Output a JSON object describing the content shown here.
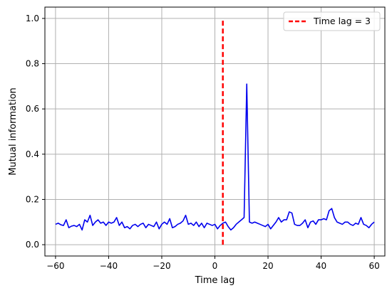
{
  "chart_data": {
    "type": "line",
    "title": "",
    "xlabel": "Time lag",
    "ylabel": "Mutual information",
    "xlim": [
      -64,
      64
    ],
    "ylim": [
      -0.05,
      1.05
    ],
    "xticks": [
      -60,
      -40,
      -20,
      0,
      20,
      40,
      60
    ],
    "yticks": [
      0.0,
      0.2,
      0.4,
      0.6,
      0.8,
      1.0
    ],
    "xtick_labels": [
      "−60",
      "−40",
      "−20",
      "0",
      "20",
      "40",
      "60"
    ],
    "ytick_labels": [
      "0.0",
      "0.2",
      "0.4",
      "0.6",
      "0.8",
      "1.0"
    ],
    "grid": true,
    "legend_position": "top-right",
    "series": [
      {
        "color": "#0000ee",
        "style": "solid",
        "x": [
          -60,
          -59,
          -58,
          -57,
          -56,
          -55,
          -54,
          -53,
          -52,
          -51,
          -50,
          -49,
          -48,
          -47,
          -46,
          -45,
          -44,
          -43,
          -42,
          -41,
          -40,
          -39,
          -38,
          -37,
          -36,
          -35,
          -34,
          -33,
          -32,
          -31,
          -30,
          -29,
          -28,
          -27,
          -26,
          -25,
          -24,
          -23,
          -22,
          -21,
          -20,
          -19,
          -18,
          -17,
          -16,
          -15,
          -14,
          -13,
          -12,
          -11,
          -10,
          -9,
          -8,
          -7,
          -6,
          -5,
          -4,
          -3,
          -2,
          -1,
          0,
          1,
          2,
          3,
          4,
          5,
          6,
          7,
          8,
          9,
          10,
          11,
          12,
          13,
          14,
          15,
          16,
          17,
          18,
          19,
          20,
          21,
          22,
          23,
          24,
          25,
          26,
          27,
          28,
          29,
          30,
          31,
          32,
          33,
          34,
          35,
          36,
          37,
          38,
          39,
          40,
          41,
          42,
          43,
          44,
          45,
          46,
          47,
          48,
          49,
          50,
          51,
          52,
          53,
          54,
          55,
          56,
          57,
          58,
          59,
          60
        ],
        "y": [
          0.09,
          0.095,
          0.088,
          0.085,
          0.11,
          0.075,
          0.082,
          0.085,
          0.08,
          0.09,
          0.065,
          0.11,
          0.1,
          0.13,
          0.085,
          0.1,
          0.11,
          0.095,
          0.1,
          0.085,
          0.1,
          0.095,
          0.1,
          0.12,
          0.085,
          0.1,
          0.075,
          0.08,
          0.07,
          0.085,
          0.09,
          0.08,
          0.09,
          0.095,
          0.075,
          0.09,
          0.085,
          0.08,
          0.1,
          0.07,
          0.09,
          0.1,
          0.09,
          0.115,
          0.075,
          0.08,
          0.09,
          0.095,
          0.105,
          0.13,
          0.09,
          0.095,
          0.085,
          0.1,
          0.08,
          0.095,
          0.075,
          0.095,
          0.09,
          0.085,
          0.09,
          0.07,
          0.085,
          0.095,
          0.1,
          0.08,
          0.065,
          0.075,
          0.09,
          0.1,
          0.11,
          0.12,
          0.71,
          0.1,
          0.095,
          0.1,
          0.095,
          0.09,
          0.085,
          0.08,
          0.09,
          0.07,
          0.085,
          0.1,
          0.12,
          0.1,
          0.11,
          0.11,
          0.145,
          0.14,
          0.09,
          0.085,
          0.085,
          0.095,
          0.11,
          0.075,
          0.1,
          0.105,
          0.09,
          0.11,
          0.11,
          0.115,
          0.11,
          0.15,
          0.16,
          0.12,
          0.1,
          0.095,
          0.09,
          0.1,
          0.1,
          0.09,
          0.085,
          0.095,
          0.09,
          0.12,
          0.09,
          0.085,
          0.075,
          0.09,
          0.1
        ]
      },
      {
        "name": "Time lag = 3",
        "color": "#ff0000",
        "style": "dashed",
        "x": [
          3,
          3
        ],
        "y": [
          0.0,
          1.0
        ]
      }
    ]
  }
}
